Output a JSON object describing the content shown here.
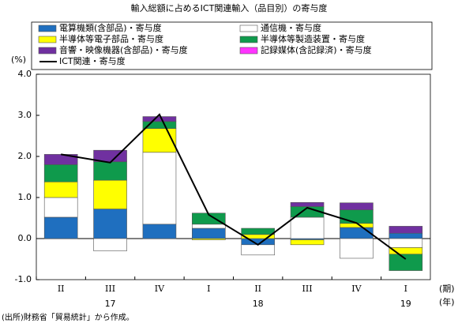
{
  "chart_data": {
    "type": "stacked_bar_line",
    "title": "輸入総額に占めるICT関連輸入（品目別）の寄与度",
    "y_unit": "(%)",
    "x_unit_period": "(期)",
    "x_unit_year": "(年)",
    "source": "(出所)財務省「貿易統計」から作成。",
    "categories": [
      "II",
      "III",
      "IV",
      "I",
      "II",
      "III",
      "IV",
      "I"
    ],
    "years": [
      {
        "index": 1,
        "label": "17"
      },
      {
        "index": 4,
        "label": "18"
      },
      {
        "index": 7,
        "label": "19"
      }
    ],
    "ylim": [
      -1.0,
      4.0
    ],
    "yticks": [
      {
        "value": -1.0,
        "label": "-1.0"
      },
      {
        "value": 0,
        "label": "0.0"
      },
      {
        "value": 1.0,
        "label": "1.0"
      },
      {
        "value": 2.0,
        "label": "2.0"
      },
      {
        "value": 3.0,
        "label": "3.0"
      },
      {
        "value": 4.0,
        "label": "4.0"
      }
    ],
    "series": [
      {
        "name": "電算機類(含部品)・寄与度",
        "color": "#1f6fbf",
        "kind": "bar",
        "values": [
          0.52,
          0.72,
          0.35,
          0.25,
          -0.15,
          -0.03,
          0.27,
          0.13
        ]
      },
      {
        "name": "通信機・寄与度",
        "color": "#ffffff",
        "kind": "bar",
        "values": [
          0.48,
          -0.3,
          1.75,
          0.1,
          -0.25,
          0.52,
          -0.48,
          -0.22
        ]
      },
      {
        "name": "半導体等電子部品・寄与度",
        "color": "#ffff00",
        "kind": "bar",
        "values": [
          0.38,
          0.7,
          0.58,
          -0.03,
          0.1,
          -0.12,
          0.1,
          -0.16
        ]
      },
      {
        "name": "半導体等製造装置・寄与度",
        "color": "#0f9a4c",
        "kind": "bar",
        "values": [
          0.42,
          0.45,
          0.17,
          0.27,
          0.15,
          0.26,
          0.33,
          -0.4
        ]
      },
      {
        "name": "音響・映像機器(含部品)・寄与度",
        "color": "#7030a0",
        "kind": "bar",
        "values": [
          0.25,
          0.28,
          0.12,
          0.0,
          0.0,
          0.1,
          0.17,
          0.17
        ]
      },
      {
        "name": "記録媒体(含記録済)・寄与度",
        "color": "#ff33ff",
        "kind": "bar",
        "values": [
          0.0,
          0.0,
          0.0,
          0.0,
          0.0,
          0.0,
          0.0,
          0.0
        ]
      },
      {
        "name": "ICT関連・寄与度",
        "color": "#000000",
        "kind": "line",
        "values": [
          2.05,
          1.85,
          3.02,
          0.58,
          -0.15,
          0.75,
          0.38,
          -0.5
        ]
      }
    ]
  }
}
